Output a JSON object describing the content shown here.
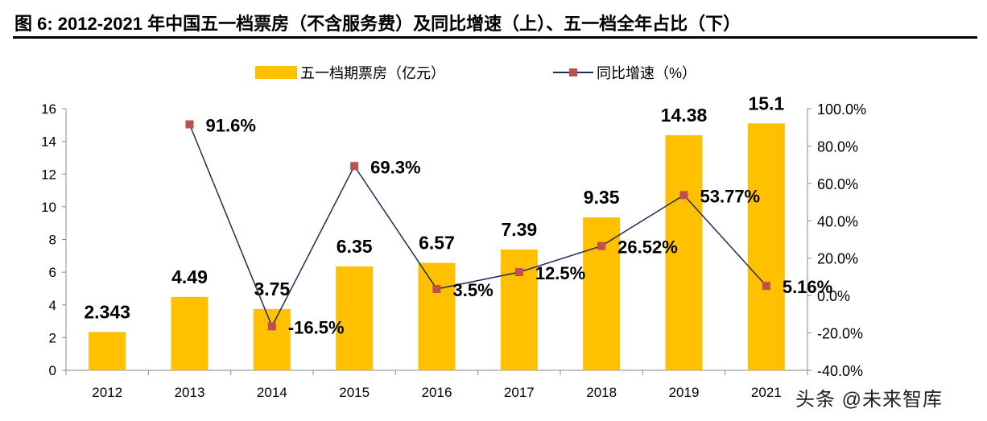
{
  "title": "图 6:  2012-2021 年中国五一档票房（不含服务费）及同比增速（上）、五一档全年占比（下）",
  "watermark": "头条 @未来智库",
  "chart_data": {
    "type": "bar+line",
    "categories": [
      "2012",
      "2013",
      "2014",
      "2015",
      "2016",
      "2017",
      "2018",
      "2019",
      "2021"
    ],
    "series": [
      {
        "name": "五一档期票房（亿元）",
        "type": "bar",
        "axis": "left",
        "color": "#FFC000",
        "values": [
          2.343,
          4.49,
          3.75,
          6.35,
          6.57,
          7.39,
          9.35,
          14.38,
          15.1
        ],
        "labels": [
          "2.343",
          "4.49",
          "3.75",
          "6.35",
          "6.57",
          "7.39",
          "9.35",
          "14.38",
          "15.1"
        ]
      },
      {
        "name": "同比增速（%）",
        "type": "line",
        "axis": "right",
        "color": "#1F2D5C",
        "marker_color": "#C0504D",
        "values": [
          null,
          91.6,
          -16.5,
          69.3,
          3.5,
          12.5,
          26.52,
          53.77,
          5.16
        ],
        "labels": [
          "",
          "91.6%",
          "-16.5%",
          "69.3%",
          "3.5%",
          "12.5%",
          "26.52%",
          "53.77%",
          "5.16%"
        ]
      }
    ],
    "y_left": {
      "range": [
        0,
        16
      ],
      "ticks": [
        "0",
        "2",
        "4",
        "6",
        "8",
        "10",
        "12",
        "14",
        "16"
      ]
    },
    "y_right": {
      "range": [
        -40,
        100
      ],
      "ticks": [
        "-40.0%",
        "-20.0%",
        "0.0%",
        "20.0%",
        "40.0%",
        "60.0%",
        "80.0%",
        "100.0%"
      ]
    },
    "grid": false,
    "legend": "top"
  }
}
